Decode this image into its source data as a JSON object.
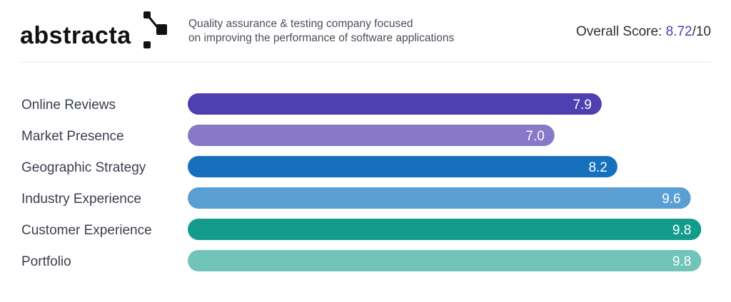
{
  "header": {
    "logo_text": "abstracta",
    "tagline_line1": "Quality assurance & testing company focused",
    "tagline_line2": "on improving the performance of software applications",
    "overall_label": "Overall Score:",
    "overall_score": "8.72",
    "overall_max": "/10"
  },
  "chart_data": {
    "type": "bar",
    "orientation": "horizontal",
    "title": "",
    "categories": [
      "Online Reviews",
      "Market Presence",
      "Geographic Strategy",
      "Industry Experience",
      "Customer Experience",
      "Portfolio"
    ],
    "values": [
      7.9,
      7.0,
      8.2,
      9.6,
      9.8,
      9.8
    ],
    "value_labels": [
      "7.9",
      "7.0",
      "8.2",
      "9.6",
      "9.8",
      "9.8"
    ],
    "colors": [
      "#4f3fb0",
      "#8878c8",
      "#1670be",
      "#5a9fd3",
      "#139c8c",
      "#70c4b9"
    ],
    "xlim": [
      0,
      10
    ],
    "grid": false,
    "legend": "none",
    "xlabel": "",
    "ylabel": ""
  }
}
